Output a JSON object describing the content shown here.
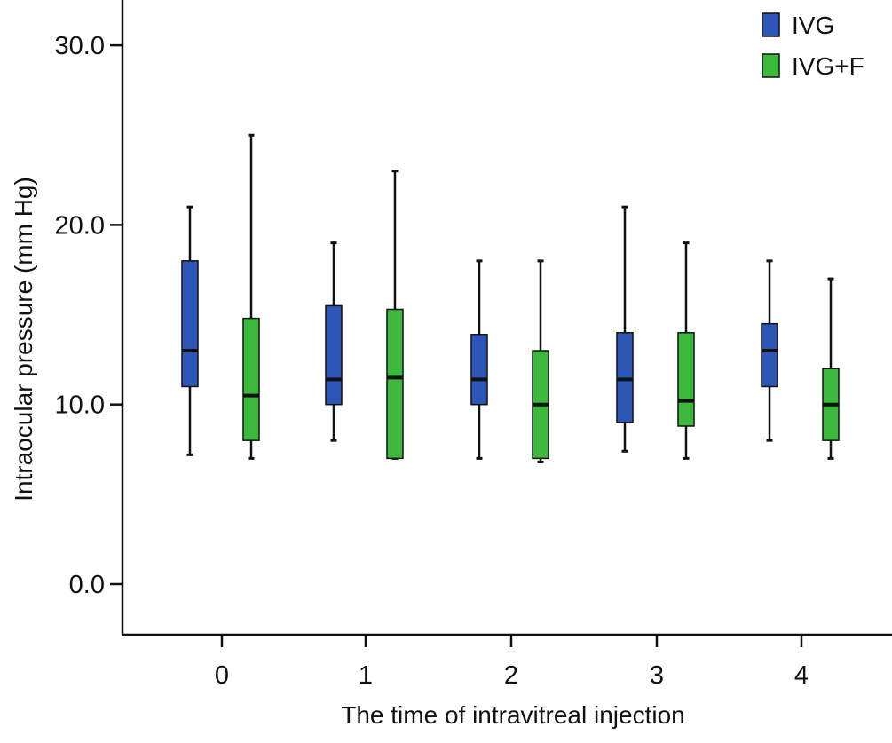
{
  "chart_data": {
    "type": "boxplot",
    "title": "",
    "xlabel": "The time of intravitreal injection",
    "ylabel": "Intraocular pressure (mm Hg)",
    "ylim": [
      -2.5,
      32.5
    ],
    "yticks": [
      0,
      10,
      20,
      30
    ],
    "ytick_labels": [
      "0.0",
      "10.0",
      "20.0",
      "30.0"
    ],
    "categories": [
      "0",
      "1",
      "2",
      "3",
      "4"
    ],
    "grid": false,
    "legend_position": "top-right",
    "series": [
      {
        "name": "IVG",
        "color": "#2e55b8",
        "boxes": [
          {
            "min": 7.2,
            "q1": 11.0,
            "median": 13.0,
            "q3": 18.0,
            "max": 21.0
          },
          {
            "min": 8.0,
            "q1": 10.0,
            "median": 11.4,
            "q3": 15.5,
            "max": 19.0
          },
          {
            "min": 7.0,
            "q1": 10.0,
            "median": 11.4,
            "q3": 13.9,
            "max": 18.0
          },
          {
            "min": 7.4,
            "q1": 9.0,
            "median": 11.4,
            "q3": 14.0,
            "max": 21.0
          },
          {
            "min": 8.0,
            "q1": 11.0,
            "median": 13.0,
            "q3": 14.5,
            "max": 18.0
          }
        ]
      },
      {
        "name": "IVG+F",
        "color": "#3cb83c",
        "boxes": [
          {
            "min": 7.0,
            "q1": 8.0,
            "median": 10.5,
            "q3": 14.8,
            "max": 25.0
          },
          {
            "min": 7.0,
            "q1": 7.0,
            "median": 11.5,
            "q3": 15.3,
            "max": 23.0
          },
          {
            "min": 6.8,
            "q1": 7.0,
            "median": 10.0,
            "q3": 13.0,
            "max": 18.0
          },
          {
            "min": 7.0,
            "q1": 8.8,
            "median": 10.2,
            "q3": 14.0,
            "max": 19.0
          },
          {
            "min": 7.0,
            "q1": 8.0,
            "median": 10.0,
            "q3": 12.0,
            "max": 17.0
          }
        ]
      }
    ]
  }
}
